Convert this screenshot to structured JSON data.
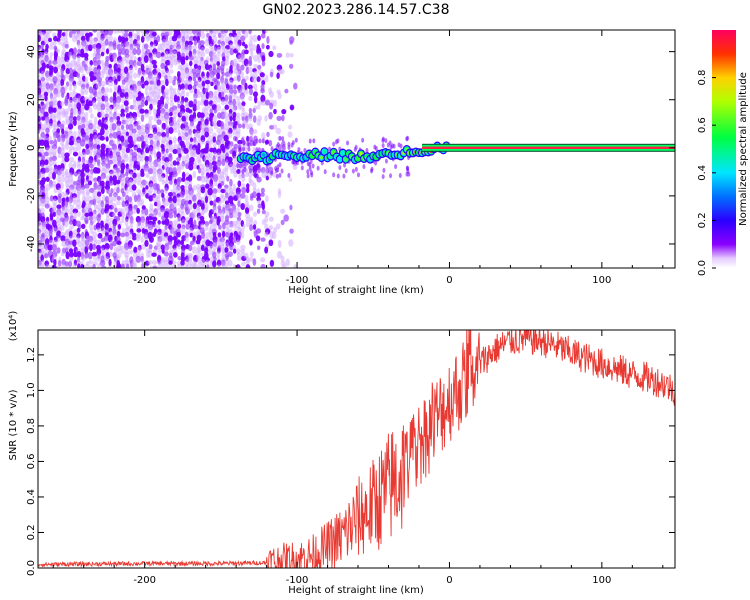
{
  "title": "GN02.2023.286.14.57.C38",
  "chart_data": [
    {
      "type": "heatmap",
      "xlabel": "Height of straight line (km)",
      "ylabel": "Frequency (Hz)",
      "xlim": [
        -270,
        148
      ],
      "ylim": [
        -50,
        49
      ],
      "xticks": [
        -200,
        -100,
        0,
        100
      ],
      "yticks": [
        -40,
        -20,
        0,
        20,
        40
      ],
      "colorbar": {
        "label": "Normalized spectral amplitude",
        "range": [
          0,
          1
        ],
        "ticks": [
          "0.0",
          "0.2",
          "0.4",
          "0.6",
          "0.8"
        ]
      },
      "noise_region_x": [
        -270,
        -105
      ],
      "signal_track": {
        "x": [
          -137,
          -120,
          -100,
          -80,
          -60,
          -40,
          -20,
          0,
          50,
          100,
          148
        ],
        "frequency": [
          -4,
          -4,
          -3,
          -3,
          -4,
          -3,
          -1,
          0,
          0,
          0,
          0
        ],
        "amplitude": [
          0.4,
          0.45,
          0.5,
          0.55,
          0.6,
          0.7,
          0.9,
          1.0,
          1.0,
          1.0,
          1.0
        ]
      }
    },
    {
      "type": "line",
      "xlabel": "Height of straight line (km)",
      "ylabel": "SNR (10 * v/v)",
      "ylabel_scale": "(x10⁴)",
      "xlim": [
        -270,
        148
      ],
      "ylim": [
        0,
        1.34
      ],
      "xticks": [
        -200,
        -100,
        0,
        100
      ],
      "yticks": [
        0.0,
        0.2,
        0.4,
        0.6,
        0.8,
        1.0,
        1.2
      ],
      "color": "#e83a32",
      "series": [
        {
          "x": [
            -270,
            -200,
            -150,
            -120,
            -100,
            -90,
            -80,
            -70,
            -60,
            -50,
            -40,
            -30,
            -20,
            -10,
            0,
            10,
            20,
            30,
            40,
            50,
            60,
            70,
            80,
            90,
            100,
            110,
            120,
            130,
            140,
            148
          ],
          "y": [
            0.02,
            0.025,
            0.025,
            0.03,
            0.05,
            0.07,
            0.12,
            0.18,
            0.28,
            0.35,
            0.45,
            0.55,
            0.7,
            0.82,
            0.95,
            1.05,
            1.15,
            1.23,
            1.28,
            1.29,
            1.28,
            1.25,
            1.21,
            1.18,
            1.15,
            1.12,
            1.09,
            1.07,
            1.04,
            1.0
          ]
        }
      ]
    }
  ]
}
